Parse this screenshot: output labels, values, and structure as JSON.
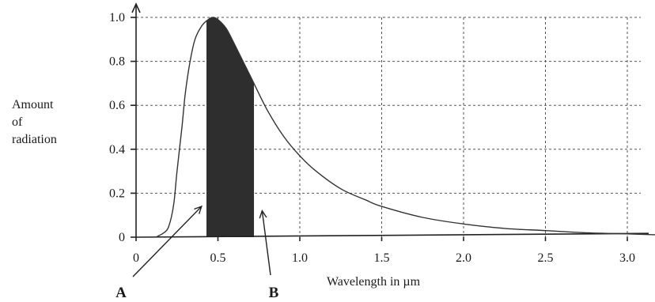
{
  "chart_data": {
    "type": "line",
    "title": "",
    "xlabel": "Wavelength in µm",
    "ylabel_lines": [
      "Amount",
      "of",
      "radiation"
    ],
    "xlim": [
      0,
      3.2
    ],
    "ylim": [
      0,
      1.05
    ],
    "x_ticks": [
      {
        "value": 0,
        "label": "0"
      },
      {
        "value": 0.5,
        "label": "0.5"
      },
      {
        "value": 1.0,
        "label": "1.0"
      },
      {
        "value": 1.5,
        "label": "1.5"
      },
      {
        "value": 2.0,
        "label": "2.0"
      },
      {
        "value": 2.5,
        "label": "2.5"
      },
      {
        "value": 3.0,
        "label": "3.0"
      }
    ],
    "y_ticks": [
      {
        "value": 0,
        "label": "0"
      },
      {
        "value": 0.2,
        "label": "0.2"
      },
      {
        "value": 0.4,
        "label": "0.4"
      },
      {
        "value": 0.6,
        "label": "0.6"
      },
      {
        "value": 0.8,
        "label": "0.8"
      },
      {
        "value": 1.0,
        "label": "1.0"
      }
    ],
    "grid": true,
    "series": [
      {
        "x": [
          0.12,
          0.17,
          0.2,
          0.23,
          0.25,
          0.28,
          0.3,
          0.33,
          0.36,
          0.4,
          0.44,
          0.47,
          0.5,
          0.55,
          0.6,
          0.7,
          0.8,
          0.9,
          1.0,
          1.1,
          1.25,
          1.4,
          1.5,
          1.75,
          2.0,
          2.25,
          2.5,
          2.75,
          3.0,
          3.2
        ],
        "values": [
          0.0,
          0.02,
          0.05,
          0.15,
          0.3,
          0.5,
          0.65,
          0.8,
          0.9,
          0.96,
          0.99,
          1.0,
          0.99,
          0.95,
          0.88,
          0.73,
          0.58,
          0.46,
          0.37,
          0.3,
          0.22,
          0.17,
          0.14,
          0.09,
          0.06,
          0.04,
          0.03,
          0.02,
          0.015,
          0.01
        ]
      }
    ],
    "shaded_band": [
      0.43,
      0.72
    ],
    "annotations": [
      {
        "label": "A",
        "target_x": 0.4,
        "target_y": 0.14
      },
      {
        "label": "B",
        "target_x": 0.77,
        "target_y": 0.12
      }
    ]
  }
}
